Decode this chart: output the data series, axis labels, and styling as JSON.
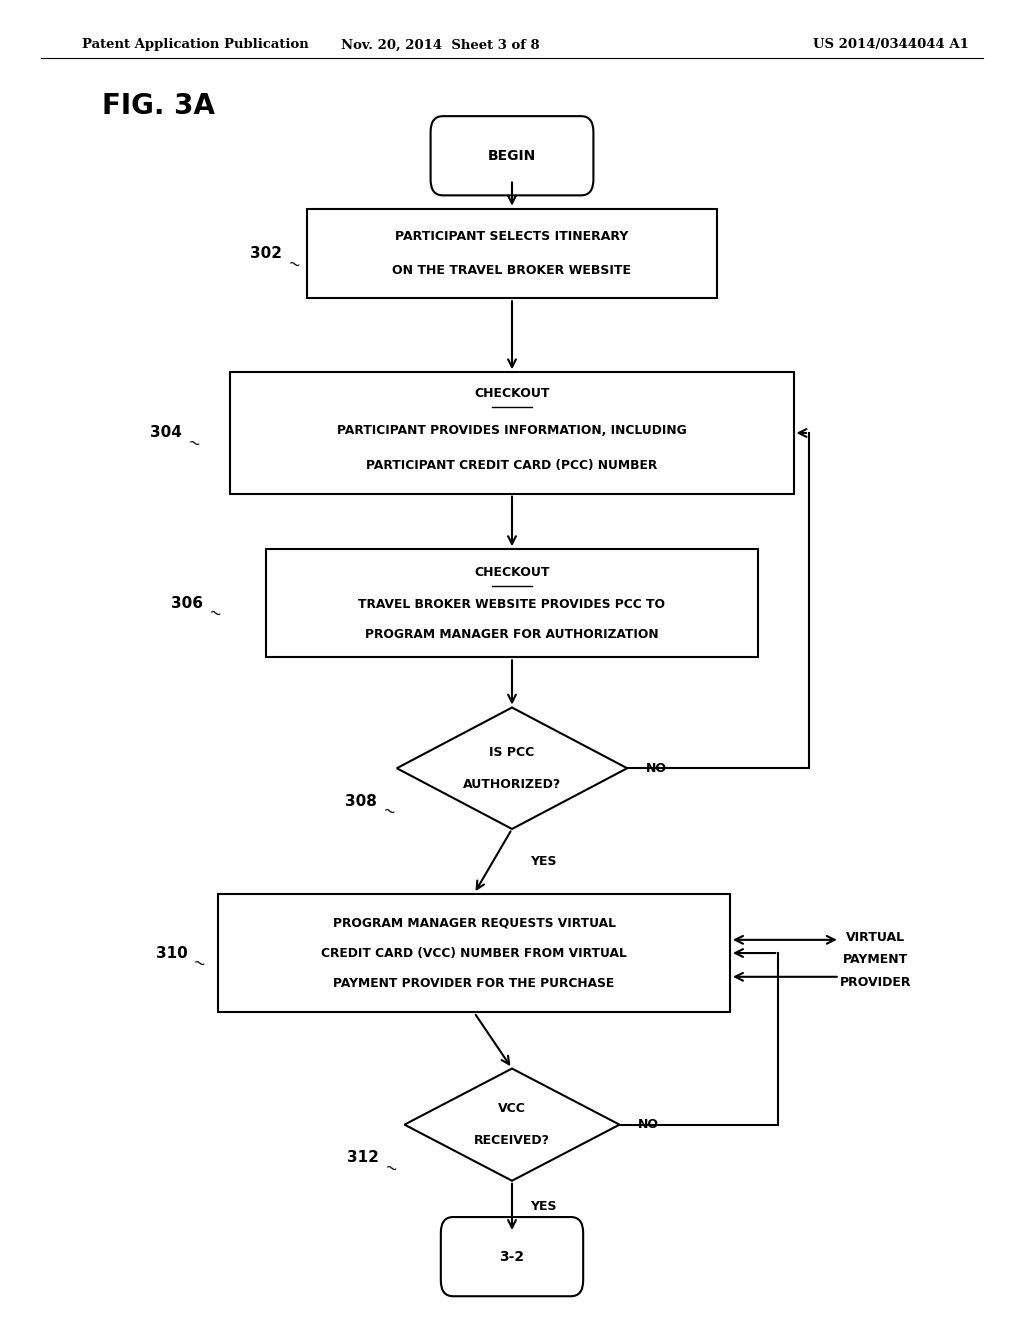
{
  "bg_color": "#ffffff",
  "header_left": "Patent Application Publication",
  "header_mid": "Nov. 20, 2014  Sheet 3 of 8",
  "header_right": "US 2014/0344044 A1",
  "fig_label": "FIG. 3A"
}
